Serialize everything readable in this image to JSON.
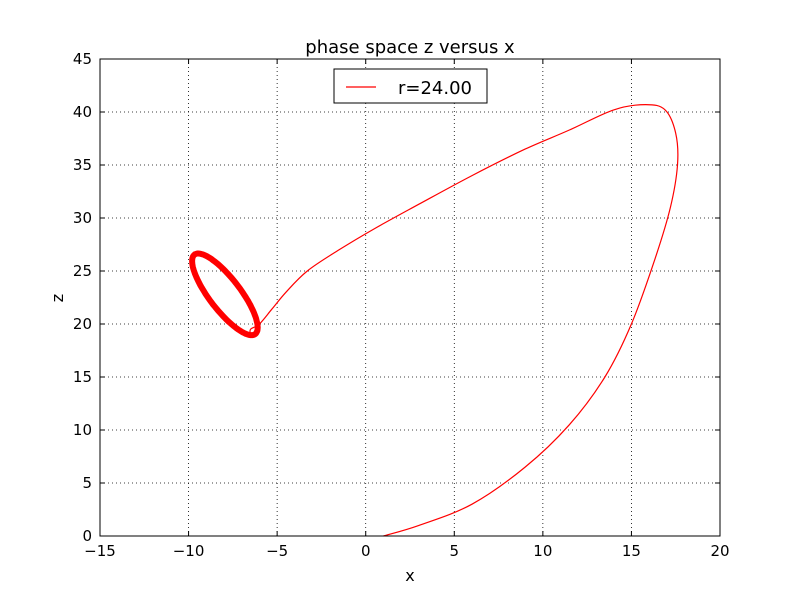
{
  "chart_data": {
    "type": "line",
    "title": "phase space z versus x",
    "xlabel": "x",
    "ylabel": "z",
    "xlim": [
      -15,
      20
    ],
    "ylim": [
      0,
      45
    ],
    "xticks": [
      -15,
      -10,
      -5,
      0,
      5,
      10,
      15,
      20
    ],
    "yticks": [
      0,
      5,
      10,
      15,
      20,
      25,
      30,
      35,
      40,
      45
    ],
    "xtick_labels": [
      "−15",
      "−10",
      "−5",
      "0",
      "5",
      "10",
      "15",
      "20"
    ],
    "ytick_labels": [
      "0",
      "5",
      "10",
      "15",
      "20",
      "25",
      "30",
      "35",
      "40",
      "45"
    ],
    "grid": true,
    "legend_position": "top-center",
    "series": [
      {
        "name": "r=24.00",
        "color": "#ff0000",
        "transient": [
          [
            1.0,
            0.0
          ],
          [
            3.0,
            1.0
          ],
          [
            6.0,
            3.0
          ],
          [
            9.0,
            6.5
          ],
          [
            11.5,
            10.5
          ],
          [
            13.5,
            15.0
          ],
          [
            15.0,
            20.0
          ],
          [
            16.3,
            26.0
          ],
          [
            17.2,
            31.0
          ],
          [
            17.6,
            35.0
          ],
          [
            17.5,
            38.0
          ],
          [
            16.9,
            40.2
          ],
          [
            15.8,
            40.7
          ],
          [
            14.0,
            40.2
          ],
          [
            11.5,
            38.3
          ],
          [
            9.0,
            36.5
          ],
          [
            6.0,
            34.0
          ],
          [
            3.0,
            31.3
          ],
          [
            0.5,
            29.0
          ],
          [
            -1.5,
            27.0
          ],
          [
            -3.3,
            25.0
          ],
          [
            -4.5,
            23.0
          ],
          [
            -5.3,
            21.4
          ],
          [
            -6.0,
            20.0
          ],
          [
            -6.5,
            19.5
          ],
          [
            -6.5,
            19.0
          ]
        ],
        "limit_cycle": {
          "center": [
            -7.95,
            22.8
          ],
          "x_extent": [
            -9.8,
            -6.1
          ],
          "z_extent": [
            19.0,
            26.7
          ]
        }
      }
    ]
  }
}
